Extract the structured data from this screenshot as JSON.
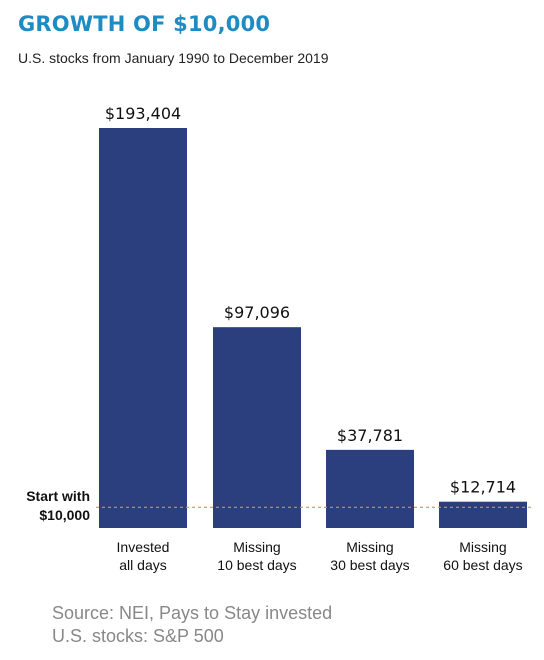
{
  "header": {
    "title": "GROWTH OF $10,000",
    "subtitle": "U.S. stocks from January 1990 to December 2019"
  },
  "colors": {
    "title": "#1E8BC3",
    "bar": "#2B3F7E",
    "reference_line": "#F0883C"
  },
  "chart_data": {
    "type": "bar",
    "title": "GROWTH OF $10,000",
    "subtitle": "U.S. stocks from January 1990 to December 2019",
    "categories": [
      [
        "Invested",
        "all days"
      ],
      [
        "Missing",
        "10 best days"
      ],
      [
        "Missing",
        "30 best days"
      ],
      [
        "Missing",
        "60 best days"
      ]
    ],
    "values": [
      193404,
      97096,
      37781,
      12714
    ],
    "data_labels": [
      "$193,404",
      "$97,096",
      "$37,781",
      "$12,714"
    ],
    "reference_line": {
      "value": 10000,
      "label": [
        "Start with",
        "$10,000"
      ]
    },
    "ylim": [
      0,
      200000
    ],
    "grid": false
  },
  "footer": {
    "source_line1": "Source: NEI, Pays to Stay invested",
    "source_line2": "U.S. stocks: S&P 500"
  }
}
